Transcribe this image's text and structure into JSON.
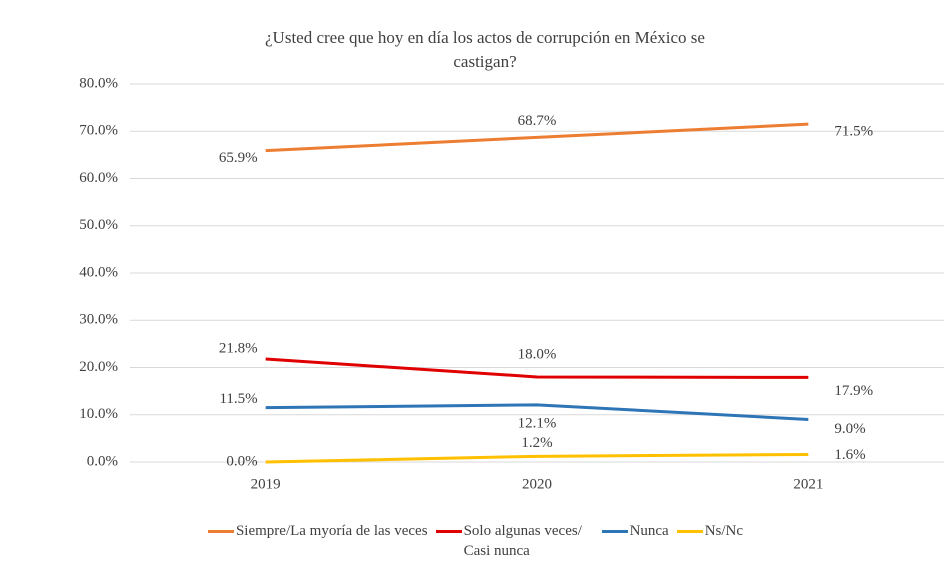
{
  "chart_data": {
    "type": "line",
    "title": "¿Usted cree que hoy en día los actos de corrupción en México se castigan?",
    "categories": [
      "2019",
      "2020",
      "2021"
    ],
    "series": [
      {
        "name": "Siempre/La myoría de las veces",
        "color": "#ED7D31",
        "values": [
          65.9,
          68.7,
          71.5
        ],
        "value_labels": [
          "65.9%",
          "68.7%",
          "71.5%"
        ]
      },
      {
        "name": "Solo algunas veces/ Casi nunca",
        "color": "#E00000",
        "values": [
          21.8,
          18.0,
          17.9
        ],
        "value_labels": [
          "21.8%",
          "18.0%",
          "17.9%"
        ]
      },
      {
        "name": "Nunca",
        "color": "#2E75B6",
        "values": [
          11.5,
          12.1,
          9.0
        ],
        "value_labels": [
          "11.5%",
          "12.1%",
          "9.0%"
        ]
      },
      {
        "name": "Ns/Nc",
        "color": "#FFC000",
        "values": [
          0.0,
          1.2,
          1.6
        ],
        "value_labels": [
          "0.0%",
          "1.2%",
          "1.6%"
        ]
      }
    ],
    "ylim": [
      0,
      80
    ],
    "yticks": [
      {
        "value": 0,
        "label": "0.0%"
      },
      {
        "value": 10,
        "label": "10.0%"
      },
      {
        "value": 20,
        "label": "20.0%"
      },
      {
        "value": 30,
        "label": "30.0%"
      },
      {
        "value": 40,
        "label": "40.0%"
      },
      {
        "value": 50,
        "label": "50.0%"
      },
      {
        "value": 60,
        "label": "60.0%"
      },
      {
        "value": 70,
        "label": "70.0%"
      },
      {
        "value": 80,
        "label": "80.0%"
      }
    ],
    "grid": true,
    "legend": "bottom"
  }
}
